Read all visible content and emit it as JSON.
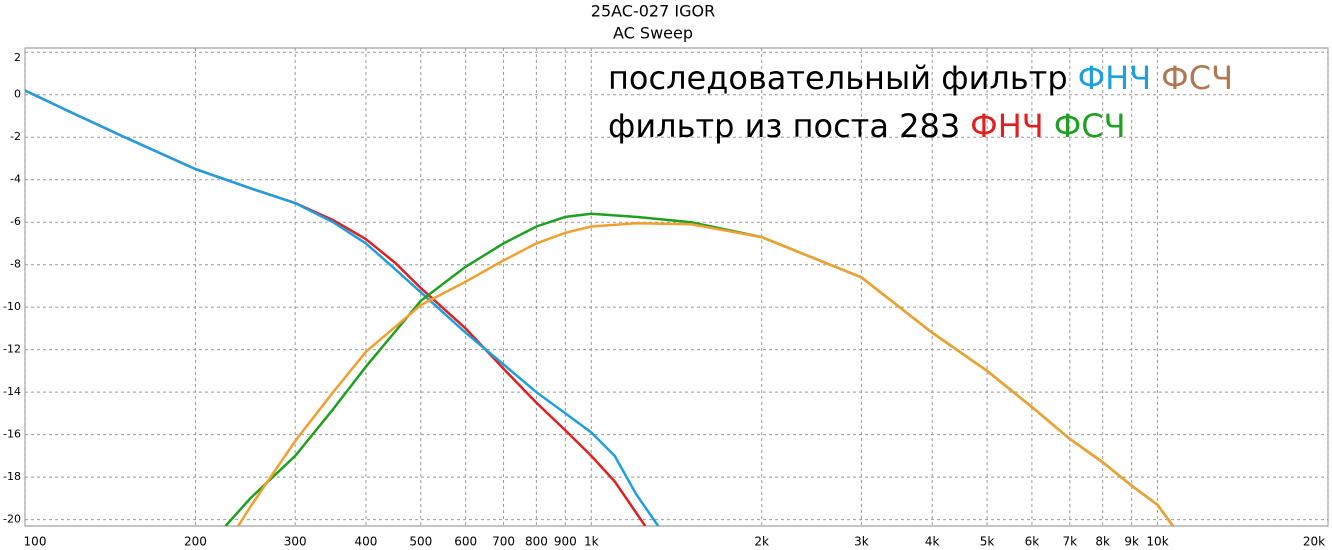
{
  "chart_data": {
    "type": "line",
    "title": "25AC-027 IGOR",
    "subtitle": "AC Sweep",
    "xscale": "log",
    "grid": true,
    "xlim": [
      100,
      20000
    ],
    "ylim": [
      -20.3,
      2.2
    ],
    "xticks": [
      100,
      200,
      300,
      400,
      500,
      600,
      700,
      800,
      900,
      {
        "value": 1000,
        "label": "1k"
      },
      {
        "value": 2000,
        "label": "2k"
      },
      {
        "value": 3000,
        "label": "3k"
      },
      {
        "value": 4000,
        "label": "4k"
      },
      {
        "value": 5000,
        "label": "5k"
      },
      {
        "value": 6000,
        "label": "6k"
      },
      {
        "value": 7000,
        "label": "7k"
      },
      {
        "value": 8000,
        "label": "8k"
      },
      {
        "value": 9000,
        "label": "9k"
      },
      {
        "value": 10000,
        "label": "10k"
      },
      {
        "value": 20000,
        "label": "20k"
      }
    ],
    "yticks": [
      2,
      0,
      -2,
      -4,
      -6,
      -8,
      -10,
      -12,
      -14,
      -16,
      -18,
      -20
    ],
    "annotations": [
      [
        {
          "text": "последовательный фильтр",
          "color": "#000000"
        },
        {
          "text": "ФНЧ",
          "color": "#1e9fe0"
        },
        {
          "text": "ФСЧ",
          "color": "#b07850"
        }
      ],
      [
        {
          "text": "фильтр из поста 283",
          "color": "#000000"
        },
        {
          "text": "ФНЧ",
          "color": "#e02020"
        },
        {
          "text": "ФСЧ",
          "color": "#20a020"
        }
      ]
    ],
    "series": [
      {
        "color": "#e02020",
        "x": [
          100,
          120,
          150,
          200,
          250,
          300,
          350,
          400,
          450,
          500,
          600,
          700,
          800,
          900,
          1000,
          1100,
          1245
        ],
        "values": [
          0.2,
          -0.8,
          -2.0,
          -3.5,
          -4.4,
          -5.1,
          -5.9,
          -6.8,
          -7.9,
          -9.1,
          -11.0,
          -12.9,
          -14.5,
          -15.8,
          -17.0,
          -18.2,
          -20.3
        ]
      },
      {
        "color": "#1e9fe0",
        "x": [
          100,
          120,
          150,
          200,
          250,
          300,
          350,
          400,
          450,
          500,
          600,
          700,
          800,
          900,
          1000,
          1100,
          1200,
          1313
        ],
        "values": [
          0.2,
          -0.8,
          -2.0,
          -3.5,
          -4.4,
          -5.1,
          -6.0,
          -7.0,
          -8.2,
          -9.3,
          -11.2,
          -12.7,
          -14.0,
          -15.0,
          -15.9,
          -17.0,
          -18.8,
          -20.3
        ]
      },
      {
        "color": "#20a020",
        "x": [
          226,
          250,
          300,
          350,
          400,
          500,
          600,
          700,
          800,
          900,
          1000,
          1200,
          1500,
          2000,
          3000,
          4000,
          5000,
          6000,
          7000,
          8000,
          9000,
          10000,
          10650
        ],
        "values": [
          -20.3,
          -19.0,
          -17.0,
          -14.8,
          -12.8,
          -9.7,
          -8.1,
          -7.0,
          -6.2,
          -5.75,
          -5.6,
          -5.75,
          -6.0,
          -6.7,
          -8.6,
          -11.2,
          -13.0,
          -14.7,
          -16.2,
          -17.3,
          -18.4,
          -19.3,
          -20.3
        ]
      },
      {
        "color": "#f0a030",
        "x": [
          238,
          250,
          300,
          350,
          400,
          500,
          600,
          700,
          800,
          900,
          1000,
          1200,
          1500,
          2000,
          3000,
          4000,
          5000,
          6000,
          7000,
          8000,
          9000,
          10000,
          10650
        ],
        "values": [
          -20.3,
          -19.4,
          -16.3,
          -14.0,
          -12.1,
          -9.9,
          -8.8,
          -7.8,
          -7.0,
          -6.5,
          -6.2,
          -6.05,
          -6.1,
          -6.7,
          -8.6,
          -11.2,
          -13.0,
          -14.7,
          -16.2,
          -17.3,
          -18.4,
          -19.3,
          -20.3
        ]
      }
    ]
  }
}
